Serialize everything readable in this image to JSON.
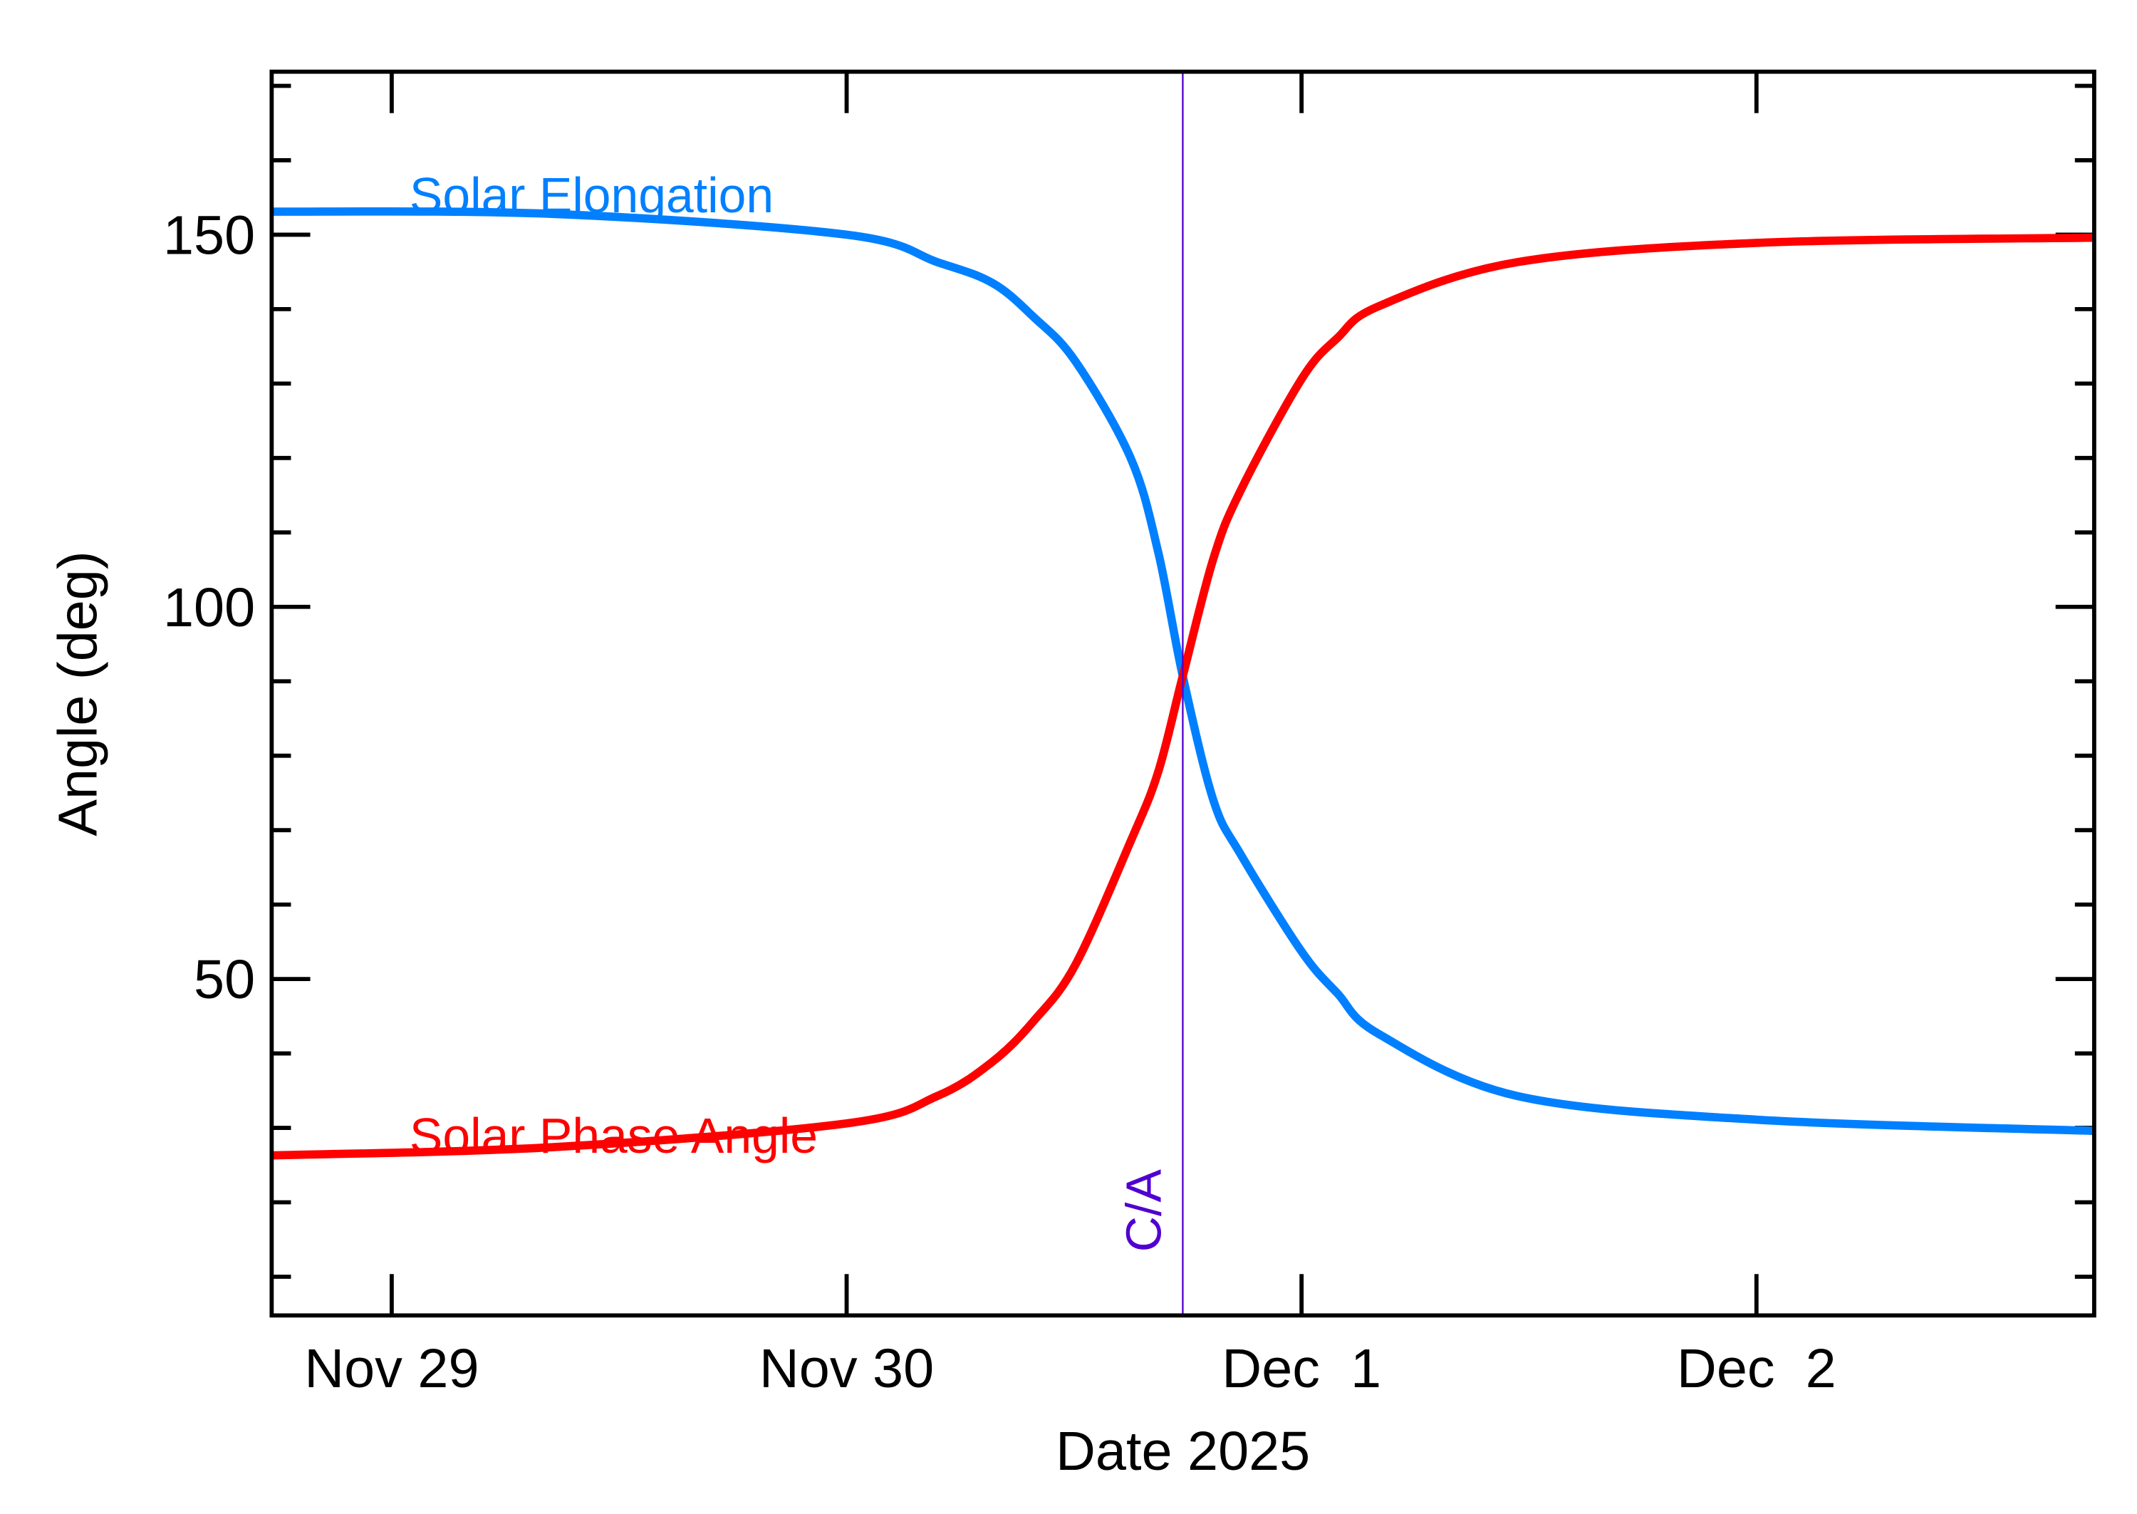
{
  "chart_data": {
    "type": "line",
    "xlabel": "Date 2025",
    "ylabel": "Angle (deg)",
    "xlim": [
      "2025-11-28T17:40",
      "2025-12-02T17:49"
    ],
    "ylim": [
      4.8,
      171.9
    ],
    "x_ticks": [
      {
        "date": "2025-11-29T00:00",
        "label": "Nov 29"
      },
      {
        "date": "2025-11-30T00:00",
        "label": "Nov 30"
      },
      {
        "date": "2025-12-01T00:00",
        "label": "Dec  1"
      },
      {
        "date": "2025-12-02T00:00",
        "label": "Dec  2"
      }
    ],
    "y_ticks": [
      50,
      100,
      150
    ],
    "y_minor_step": 10,
    "grid": false,
    "closest_approach": {
      "date": "2025-11-30T17:44",
      "label": "C/A",
      "color": "#5000D0"
    },
    "series": [
      {
        "name": "Solar Elongation",
        "color": "#0080FF",
        "points": [
          [
            "2025-11-28T17:40",
            153.1
          ],
          [
            "2025-11-29T08:27",
            152.8
          ],
          [
            "2025-11-30T00:00",
            150.0
          ],
          [
            "2025-11-30T04:48",
            146.3
          ],
          [
            "2025-11-30T07:42",
            143.5
          ],
          [
            "2025-11-30T09:53",
            138.9
          ],
          [
            "2025-11-30T12:04",
            133.0
          ],
          [
            "2025-11-30T14:59",
            120.0
          ],
          [
            "2025-11-30T16:26",
            107.4
          ],
          [
            "2025-11-30T17:44",
            90.7
          ],
          [
            "2025-11-30T19:21",
            74.0
          ],
          [
            "2025-11-30T20:48",
            66.7
          ],
          [
            "2025-12-01T00:00",
            53.7
          ],
          [
            "2025-12-01T01:53",
            48.1
          ],
          [
            "2025-12-01T04:05",
            42.6
          ],
          [
            "2025-12-01T11:21",
            34.3
          ],
          [
            "2025-12-02T00:00",
            31.1
          ],
          [
            "2025-12-02T17:49",
            29.6
          ]
        ]
      },
      {
        "name": "Solar Phase Angle",
        "color": "#FF0000",
        "points": [
          [
            "2025-11-28T17:40",
            26.3
          ],
          [
            "2025-11-29T08:27",
            27.4
          ],
          [
            "2025-11-30T00:00",
            30.6
          ],
          [
            "2025-11-30T04:48",
            34.3
          ],
          [
            "2025-11-30T07:42",
            38.9
          ],
          [
            "2025-11-30T09:53",
            44.4
          ],
          [
            "2025-11-30T12:04",
            51.9
          ],
          [
            "2025-11-30T14:59",
            68.5
          ],
          [
            "2025-11-30T16:26",
            77.8
          ],
          [
            "2025-11-30T17:44",
            90.7
          ],
          [
            "2025-11-30T19:21",
            106.5
          ],
          [
            "2025-11-30T20:48",
            115.7
          ],
          [
            "2025-12-01T00:00",
            130.6
          ],
          [
            "2025-12-01T01:53",
            136.1
          ],
          [
            "2025-12-01T04:05",
            140.4
          ],
          [
            "2025-12-01T11:21",
            146.3
          ],
          [
            "2025-12-02T00:00",
            148.9
          ],
          [
            "2025-12-02T17:49",
            149.6
          ]
        ]
      }
    ]
  }
}
